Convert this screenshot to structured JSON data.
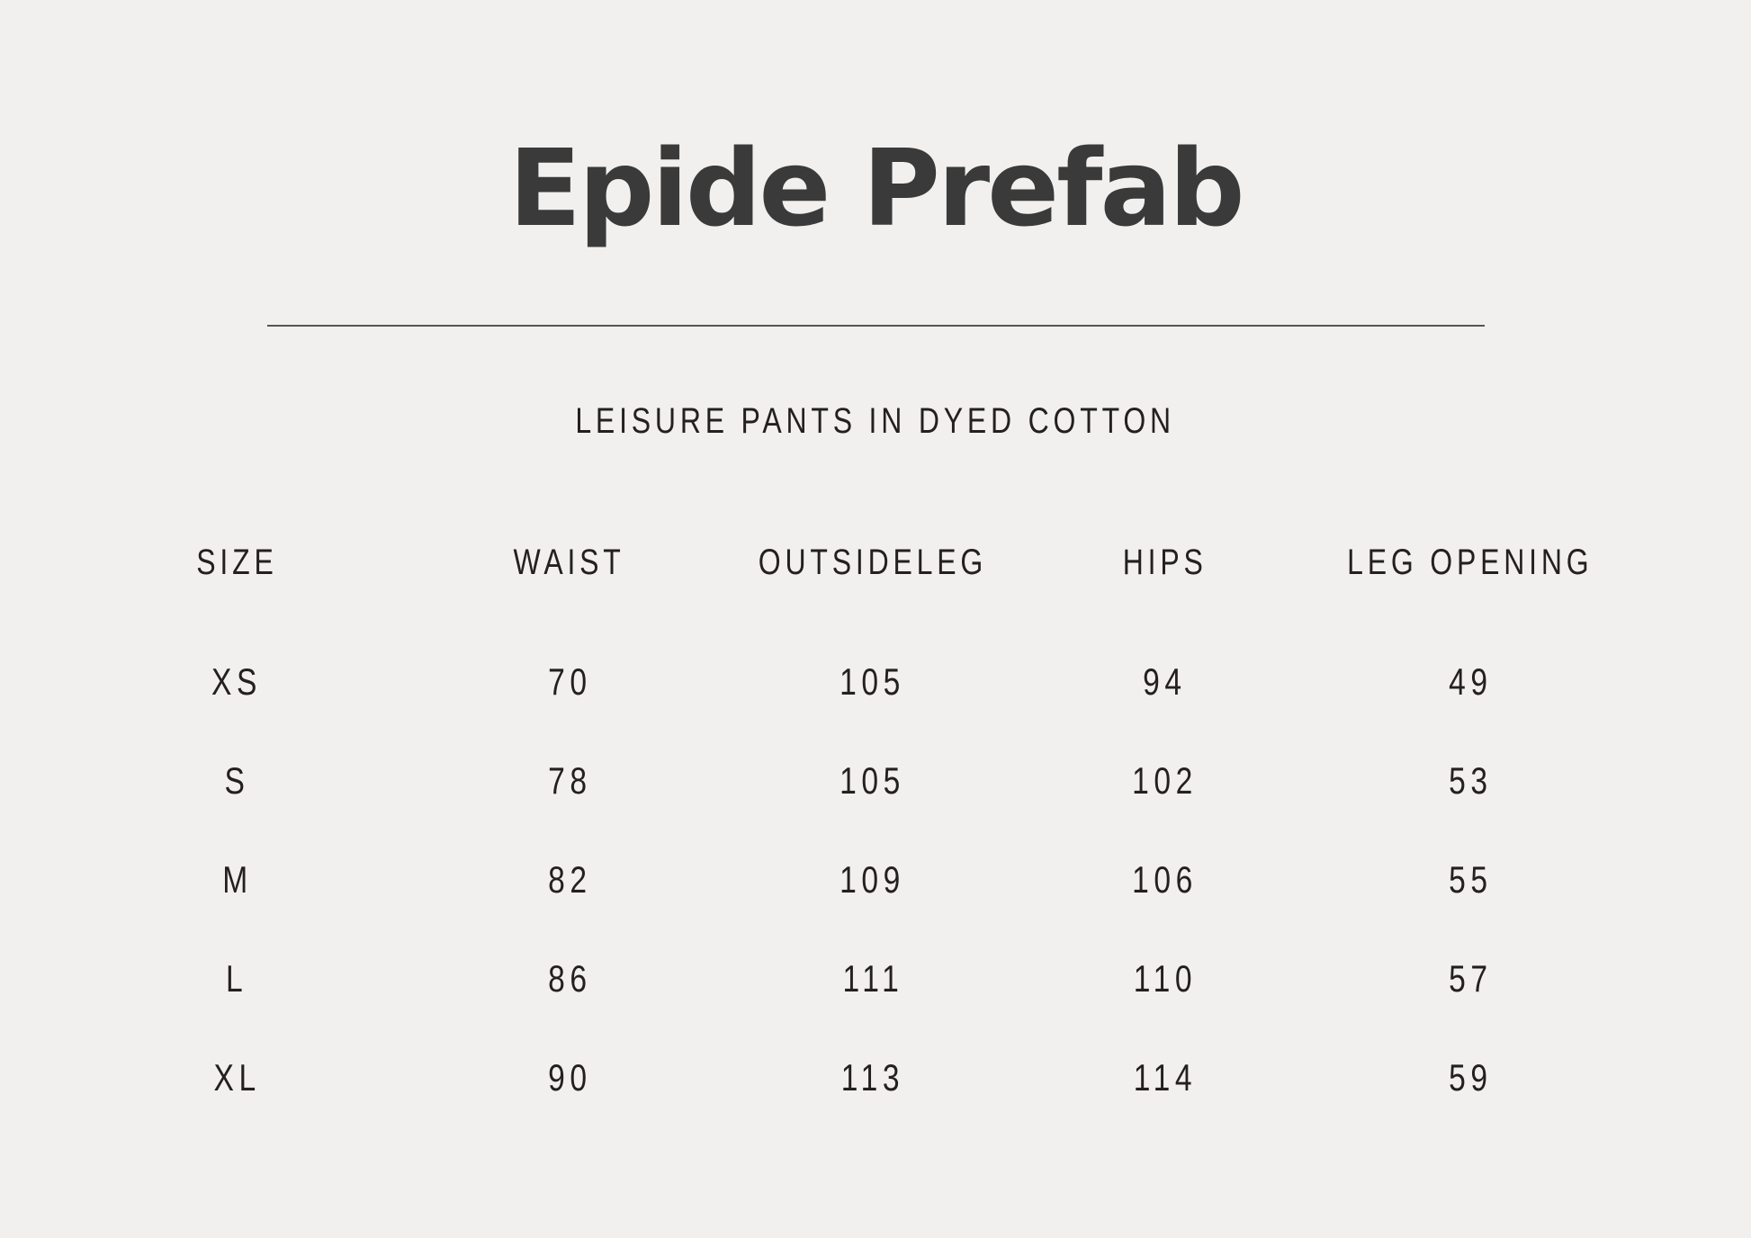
{
  "title": "Epide Prefab",
  "subtitle": "LEISURE PANTS IN DYED COTTON",
  "table": {
    "headers": [
      "SIZE",
      "WAIST",
      "OUTSIDELEG",
      "HIPS",
      "LEG OPENING"
    ],
    "rows": [
      [
        "XS",
        "70",
        "105",
        "94",
        "49"
      ],
      [
        "S",
        "78",
        "105",
        "102",
        "53"
      ],
      [
        "M",
        "82",
        "109",
        "106",
        "55"
      ],
      [
        "L",
        "86",
        "111",
        "110",
        "57"
      ],
      [
        "XL",
        "90",
        "113",
        "114",
        "59"
      ]
    ]
  },
  "colors": {
    "background": "#f1f0ee",
    "title_text": "#3a3a3a",
    "body_text": "#241f20",
    "divider": "#555451"
  }
}
